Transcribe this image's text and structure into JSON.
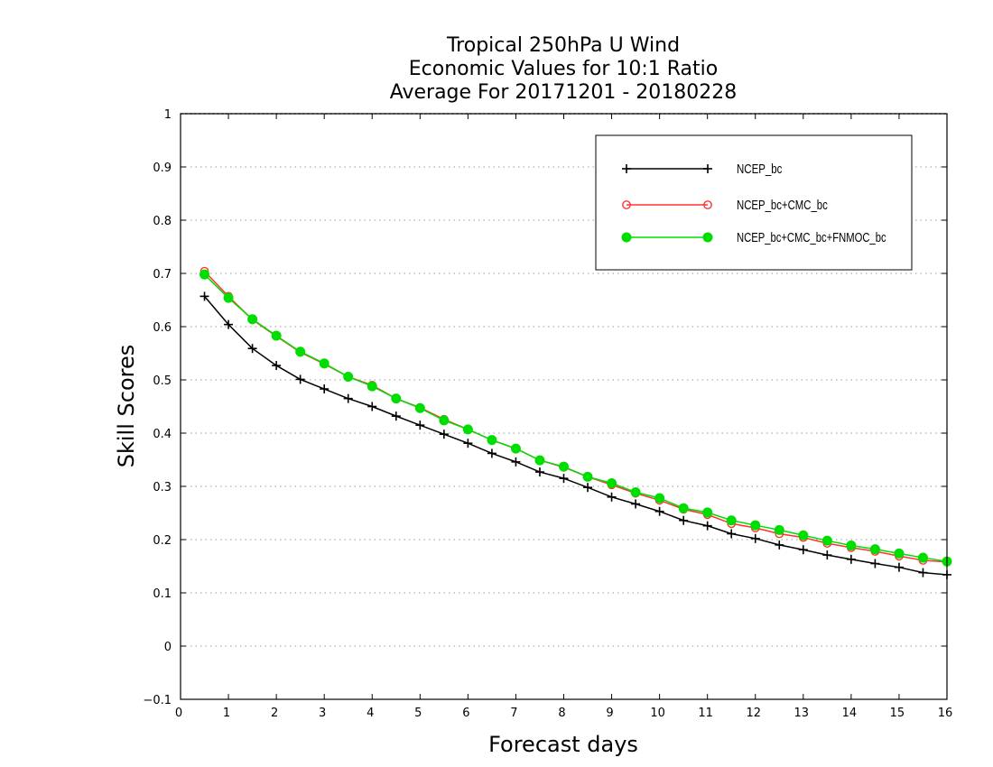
{
  "chart_data": {
    "type": "line",
    "title_lines": [
      "Tropical 250hPa U Wind",
      "Economic Values for 10:1 Ratio",
      "Average For 20171201 - 20180228"
    ],
    "xlabel": "Forecast days",
    "ylabel": "Skill Scores",
    "xlim": [
      0,
      16
    ],
    "ylim": [
      -0.1,
      1
    ],
    "xticks": [
      "0",
      "1",
      "2",
      "3",
      "4",
      "5",
      "6",
      "7",
      "8",
      "9",
      "10",
      "11",
      "12",
      "13",
      "14",
      "15",
      "16"
    ],
    "yticks": [
      "−0.1",
      "0",
      "0.1",
      "0.2",
      "0.3",
      "0.4",
      "0.5",
      "0.6",
      "0.7",
      "0.8",
      "0.9",
      "1"
    ],
    "grid": "horizontal dotted",
    "legend_position": "top-right",
    "x": [
      0.5,
      1,
      1.5,
      2,
      2.5,
      3,
      3.5,
      4,
      4.5,
      5,
      5.5,
      6,
      6.5,
      7,
      7.5,
      8,
      8.5,
      9,
      9.5,
      10,
      10.5,
      11,
      11.5,
      12,
      12.5,
      13,
      13.5,
      14,
      14.5,
      15,
      15.5,
      16
    ],
    "series": [
      {
        "name": "NCEP_bc",
        "color": "#000000",
        "marker": "plus",
        "values": [
          0.657,
          0.604,
          0.559,
          0.527,
          0.501,
          0.483,
          0.465,
          0.45,
          0.432,
          0.415,
          0.398,
          0.381,
          0.362,
          0.346,
          0.327,
          0.315,
          0.298,
          0.28,
          0.267,
          0.253,
          0.236,
          0.226,
          0.211,
          0.202,
          0.19,
          0.181,
          0.171,
          0.163,
          0.155,
          0.148,
          0.138,
          0.134
        ]
      },
      {
        "name": "NCEP_bc+CMC_bc",
        "color": "#ff3333",
        "marker": "open-circle",
        "values": [
          0.704,
          0.657,
          0.613,
          0.582,
          0.552,
          0.53,
          0.506,
          0.49,
          0.465,
          0.448,
          0.426,
          0.407,
          0.387,
          0.371,
          0.349,
          0.336,
          0.318,
          0.303,
          0.287,
          0.274,
          0.257,
          0.247,
          0.23,
          0.222,
          0.211,
          0.204,
          0.193,
          0.185,
          0.178,
          0.169,
          0.161,
          0.158
        ]
      },
      {
        "name": "NCEP_bc+CMC_bc+FNMOC_bc",
        "color": "#00dd00",
        "marker": "filled-circle",
        "values": [
          0.698,
          0.654,
          0.614,
          0.583,
          0.553,
          0.531,
          0.506,
          0.488,
          0.465,
          0.447,
          0.424,
          0.407,
          0.387,
          0.371,
          0.349,
          0.337,
          0.318,
          0.306,
          0.289,
          0.278,
          0.259,
          0.251,
          0.236,
          0.227,
          0.218,
          0.208,
          0.198,
          0.189,
          0.182,
          0.174,
          0.166,
          0.159
        ]
      }
    ]
  }
}
